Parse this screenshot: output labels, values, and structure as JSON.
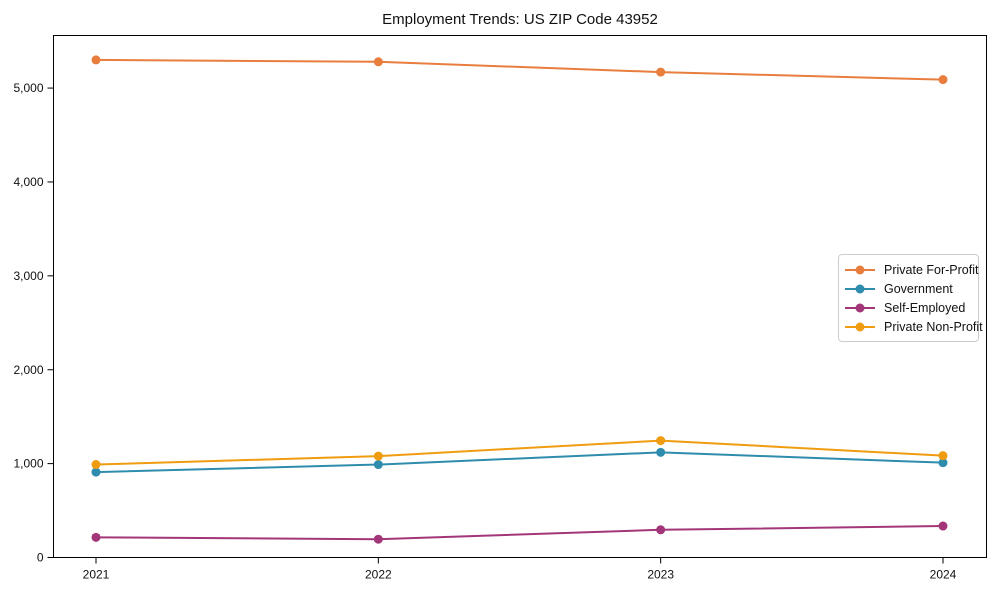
{
  "figure": {
    "title": "Employment Trends: US ZIP Code 43952"
  },
  "chart_data": {
    "type": "line",
    "title": "Employment Trends: US ZIP Code 43952",
    "categories": [
      "2021",
      "2022",
      "2023",
      "2024"
    ],
    "series": [
      {
        "name": "Private For-Profit",
        "color": "#E87D3E",
        "values": [
          5300,
          5280,
          5170,
          5090
        ]
      },
      {
        "name": "Government",
        "color": "#2E8CAD",
        "values": [
          910,
          990,
          1120,
          1010
        ]
      },
      {
        "name": "Self-Employed",
        "color": "#A23679",
        "values": [
          215,
          195,
          295,
          335
        ]
      },
      {
        "name": "Private Non-Profit",
        "color": "#F09C10",
        "values": [
          990,
          1080,
          1245,
          1085
        ]
      }
    ],
    "xlabel": "",
    "ylabel": "",
    "ylim": [
      0,
      5560
    ],
    "yticks": [
      {
        "value": 0,
        "label": "0"
      },
      {
        "value": 1000,
        "label": "1,000"
      },
      {
        "value": 2000,
        "label": "2,000"
      },
      {
        "value": 3000,
        "label": "3,000"
      },
      {
        "value": 4000,
        "label": "4,000"
      },
      {
        "value": 5000,
        "label": "5,000"
      }
    ],
    "grid": false,
    "marker": "circle",
    "legend_position": "center-right"
  }
}
